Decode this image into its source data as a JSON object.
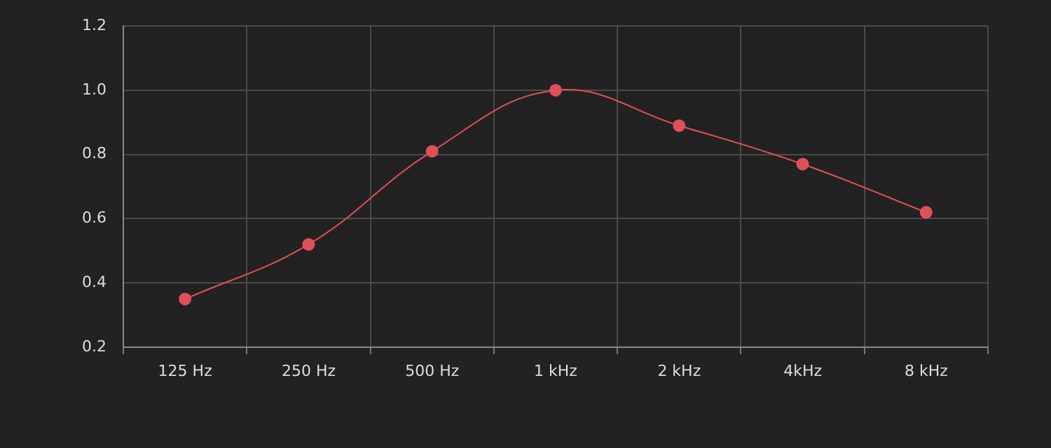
{
  "chart_data": {
    "type": "line",
    "categories": [
      "125 Hz",
      "250 Hz",
      "500 Hz",
      "1 kHz",
      "2 kHz",
      "4kHz",
      "8 kHz"
    ],
    "series": [
      {
        "color": "#e0505a",
        "values": [
          0.35,
          0.52,
          0.81,
          1.0,
          0.89,
          0.77,
          0.62
        ]
      }
    ],
    "ylim": [
      0.2,
      1.2
    ],
    "yticks": [
      {
        "value": 0.2,
        "label": "0.2"
      },
      {
        "value": 0.4,
        "label": "0.4"
      },
      {
        "value": 0.6,
        "label": "0.6"
      },
      {
        "value": 0.8,
        "label": "0.8"
      },
      {
        "value": 1.0,
        "label": "1.0"
      },
      {
        "value": 1.2,
        "label": "1.2"
      }
    ],
    "grid": true,
    "legend": false,
    "marker": "circle",
    "line_style": "solid"
  }
}
